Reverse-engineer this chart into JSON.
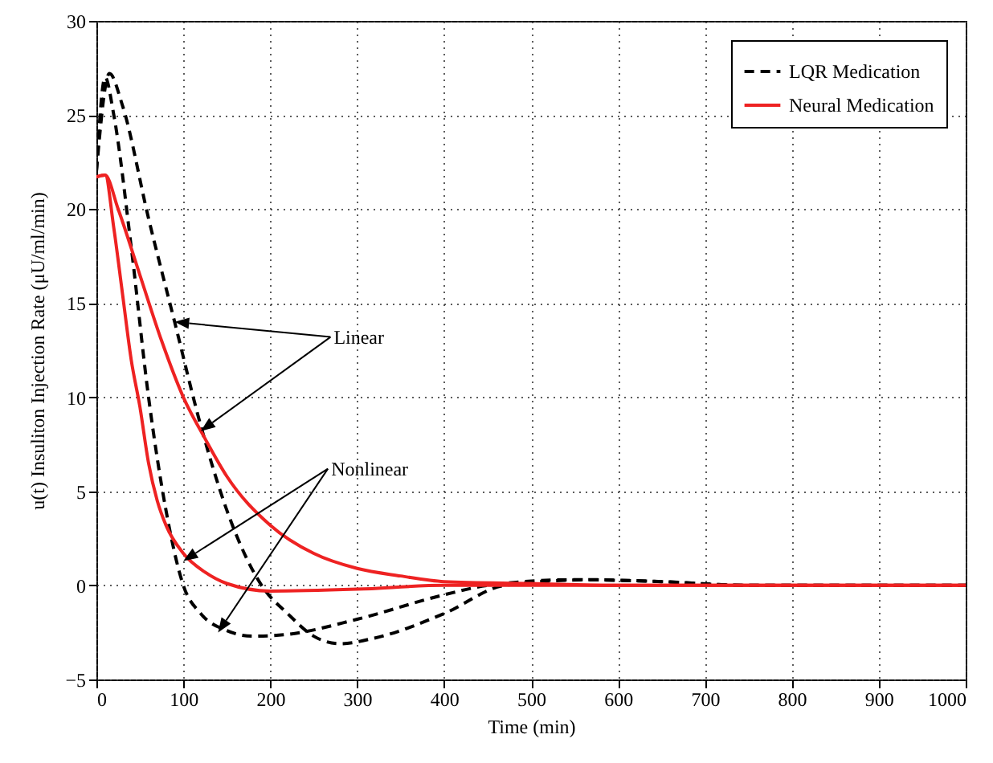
{
  "chart_data": {
    "type": "line",
    "xlabel": "Time (min)",
    "ylabel": "u(t) Insuliton Injection Rate (μU/ml/min)",
    "xlim": [
      0,
      1000
    ],
    "xticks": [
      0,
      100,
      200,
      300,
      400,
      500,
      600,
      700,
      800,
      900,
      1000
    ],
    "ylim": [
      -5,
      30
    ],
    "yticks": [
      -5,
      0,
      5,
      10,
      15,
      20,
      25,
      30
    ],
    "grid": true,
    "legend": "top right",
    "marker": "none",
    "annotations": [
      "Linear",
      "Nonlinear"
    ],
    "series": [
      {
        "name": "LQR Medication",
        "color": "#000000",
        "line_style": "dashed",
        "x": [
          0,
          15,
          30,
          60,
          90,
          120,
          150,
          190,
          220,
          250,
          280,
          320,
          400,
          470,
          570,
          650,
          750,
          1000
        ],
        "values": [
          22,
          27.2,
          25.5,
          19.5,
          14,
          8.5,
          4,
          0,
          -1.5,
          -2.7,
          -3.1,
          -2.8,
          -1.5,
          0,
          0.3,
          0.2,
          0,
          0
        ]
      },
      {
        "color": "#000000",
        "line_style": "dashed",
        "x": [
          0,
          10,
          20,
          40,
          60,
          80,
          100,
          120,
          150,
          180,
          220,
          300,
          400,
          450,
          550,
          650,
          750,
          1000
        ],
        "values": [
          22,
          27,
          25,
          18,
          10,
          4,
          0,
          -1.5,
          -2.4,
          -2.7,
          -2.6,
          -1.8,
          -0.5,
          0,
          0.3,
          0.2,
          0,
          0
        ]
      },
      {
        "name": "Neural Medication",
        "color": "#ee2222",
        "line_style": "solid",
        "x": [
          0,
          10,
          25,
          50,
          75,
          100,
          125,
          150,
          200,
          250,
          300,
          350,
          400,
          500,
          600,
          1000
        ],
        "values": [
          21.7,
          21.8,
          20,
          16.5,
          13,
          10,
          7.8,
          5.8,
          3.2,
          1.7,
          0.9,
          0.5,
          0.2,
          0.1,
          0,
          0
        ]
      },
      {
        "color": "#ee2222",
        "line_style": "solid",
        "x": [
          0,
          10,
          20,
          30,
          40,
          50,
          60,
          70,
          80,
          100,
          125,
          150,
          200,
          300,
          400,
          500,
          1000
        ],
        "values": [
          21.7,
          21.8,
          19,
          15.5,
          12,
          9.5,
          6.5,
          4.5,
          3.2,
          1.7,
          0.7,
          0.1,
          -0.3,
          -0.2,
          0,
          0,
          0
        ]
      }
    ]
  }
}
